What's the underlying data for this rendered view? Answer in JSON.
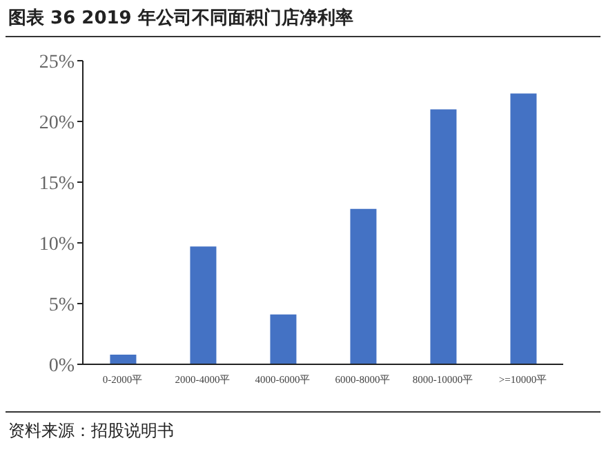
{
  "chart_data": {
    "type": "bar",
    "title": "图表 36 2019 年公司不同面积门店净利率",
    "categories": [
      "0-2000平",
      "2000-4000平",
      "4000-6000平",
      "6000-8000平",
      "8000-10000平",
      ">=10000平"
    ],
    "values": [
      0.8,
      9.7,
      4.1,
      12.8,
      21.0,
      22.3
    ],
    "color": "#4472c4",
    "ylim": [
      0,
      25
    ],
    "yticks": [
      {
        "value": 0,
        "label": "0%"
      },
      {
        "value": 5,
        "label": "5%"
      },
      {
        "value": 10,
        "label": "10%"
      },
      {
        "value": 15,
        "label": "15%"
      },
      {
        "value": 20,
        "label": "20%"
      },
      {
        "value": 25,
        "label": "25%"
      }
    ],
    "grid": false,
    "annotations": [
      "资料来源：招股说明书"
    ]
  }
}
